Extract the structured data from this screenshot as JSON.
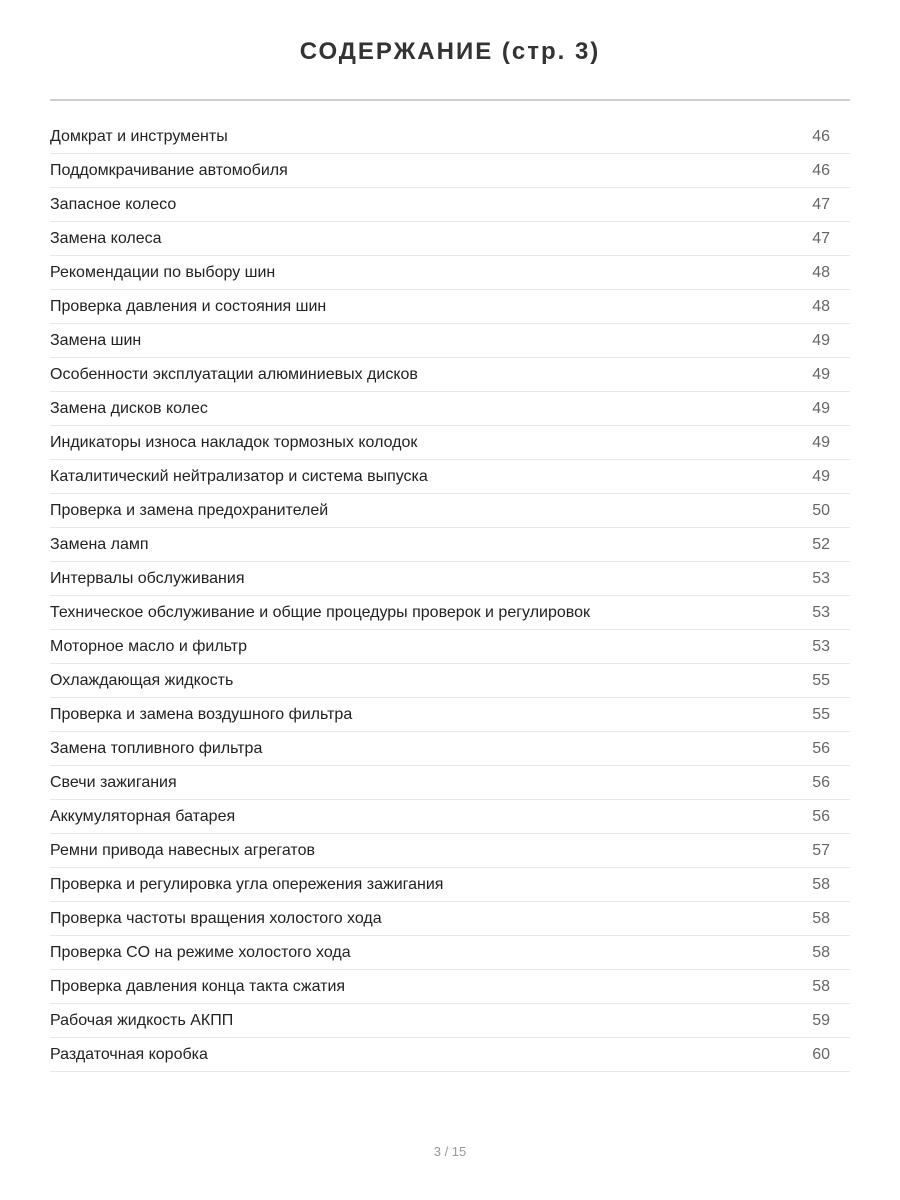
{
  "title": "СОДЕРЖАНИЕ (стр. 3)",
  "entries": [
    {
      "label": "Домкрат и инструменты",
      "page": "46"
    },
    {
      "label": "Поддомкрачивание автомобиля",
      "page": "46"
    },
    {
      "label": "Запасное колесо",
      "page": "47"
    },
    {
      "label": "Замена колеса",
      "page": "47"
    },
    {
      "label": "Рекомендации по выбору шин",
      "page": "48"
    },
    {
      "label": "Проверка давления и состояния шин",
      "page": "48"
    },
    {
      "label": "Замена шин",
      "page": "49"
    },
    {
      "label": "Особенности эксплуатации алюминиевых дисков",
      "page": "49"
    },
    {
      "label": "Замена дисков колес",
      "page": "49"
    },
    {
      "label": "Индикаторы износа накладок тормозных колодок",
      "page": "49"
    },
    {
      "label": "Каталитический нейтрализатор и система выпуска",
      "page": "49"
    },
    {
      "label": "Проверка и замена предохранителей",
      "page": "50"
    },
    {
      "label": "Замена ламп",
      "page": "52"
    },
    {
      "label": "Интервалы обслуживания",
      "page": "53"
    },
    {
      "label": "Техническое обслуживание и общие процедуры проверок и регулировок",
      "page": "53"
    },
    {
      "label": "Моторное масло и фильтр",
      "page": "53"
    },
    {
      "label": "Охлаждающая жидкость",
      "page": "55"
    },
    {
      "label": "Проверка и замена воздушного фильтра",
      "page": "55"
    },
    {
      "label": "Замена топливного фильтра",
      "page": "56"
    },
    {
      "label": "Свечи зажигания",
      "page": "56"
    },
    {
      "label": "Аккумуляторная батарея",
      "page": "56"
    },
    {
      "label": "Ремни привода навесных агрегатов",
      "page": "57"
    },
    {
      "label": "Проверка и регулировка угла опережения зажигания",
      "page": "58"
    },
    {
      "label": "Проверка частоты вращения холостого хода",
      "page": "58"
    },
    {
      "label": "Проверка CO на режиме холостого хода",
      "page": "58"
    },
    {
      "label": "Проверка давления конца такта сжатия",
      "page": "58"
    },
    {
      "label": "Рабочая жидкость АКПП",
      "page": "59"
    },
    {
      "label": "Раздаточная коробка",
      "page": "60"
    }
  ],
  "footer": "3 / 15"
}
